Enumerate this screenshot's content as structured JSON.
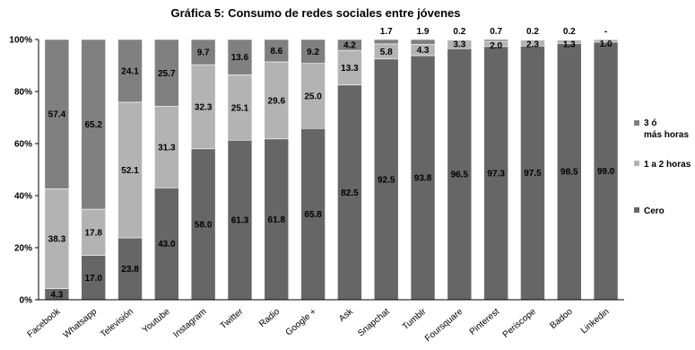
{
  "chart_data": {
    "type": "bar",
    "stacked": true,
    "title": "Gráfica 5: Consumo de redes sociales entre jóvenes",
    "categories": [
      "Facebook",
      "Whatsapp",
      "Televisión",
      "Youtube",
      "Instagram",
      "Twitter",
      "Radio",
      "Google +",
      "Ask",
      "Snapchat",
      "Tumblr",
      "Foursquare",
      "Pinterest",
      "Periscope",
      "Badoo",
      "Linkedin"
    ],
    "series": [
      {
        "name": "Cero",
        "color": "#666666",
        "values": [
          4.3,
          17.0,
          23.8,
          43.0,
          58.0,
          61.3,
          61.8,
          65.8,
          82.5,
          92.5,
          93.8,
          96.5,
          97.3,
          97.5,
          98.5,
          99.0
        ],
        "labels": [
          "4.3",
          "17.0",
          "23.8",
          "43.0",
          "58.0",
          "61.3",
          "61.8",
          "65.8",
          "82.5",
          "92.5",
          "93.8",
          "96.5",
          "97.3",
          "97.5",
          "98.5",
          "99.0"
        ]
      },
      {
        "name": "1 a 2 horas",
        "color": "#b3b3b3",
        "values": [
          38.3,
          17.8,
          52.1,
          31.3,
          32.3,
          25.1,
          29.6,
          25.0,
          13.3,
          5.8,
          4.3,
          3.3,
          2.0,
          2.3,
          1.3,
          1.0
        ],
        "labels": [
          "38.3",
          "17.8",
          "52.1",
          "31.3",
          "32.3",
          "25.1",
          "29.6",
          "25.0",
          "13.3",
          "5.8",
          "4.3",
          "3.3",
          "2.0",
          "2.3",
          "1.3",
          "1.0"
        ]
      },
      {
        "name": "3 ó más horas",
        "color": "#808080",
        "values": [
          57.4,
          65.2,
          24.1,
          25.7,
          9.7,
          13.6,
          8.6,
          9.2,
          4.2,
          1.7,
          1.9,
          0.2,
          0.7,
          0.2,
          0.2,
          0
        ],
        "labels": [
          "57.4",
          "65.2",
          "24.1",
          "25.7",
          "9.7",
          "13.6",
          "8.6",
          "9.2",
          "4.2",
          "1.7",
          "1.9",
          "0.2",
          "0.7",
          "0.2",
          "0.2",
          "-"
        ]
      }
    ],
    "yticks": [
      "0%",
      "20%",
      "40%",
      "60%",
      "80%",
      "100%"
    ],
    "ylim": [
      0,
      100
    ],
    "legend": [
      "3 ó más horas",
      "1 a 2 horas",
      "Cero"
    ],
    "legend_position": "right"
  }
}
